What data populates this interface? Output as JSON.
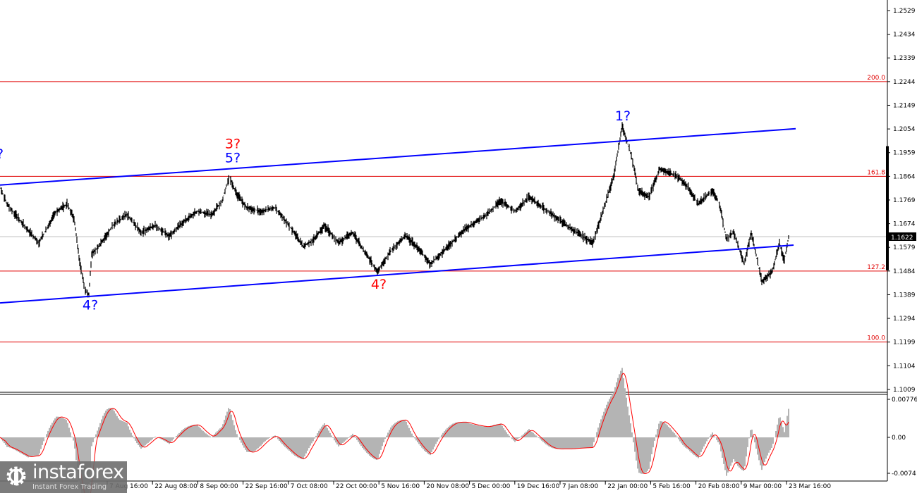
{
  "chart_data": {
    "type": "line",
    "title": "",
    "price_axis": {
      "ticks": [
        "1.2529",
        "1.2434",
        "1.2339",
        "1.2244",
        "1.2149",
        "1.2054",
        "1.1959",
        "1.1864",
        "1.1769",
        "1.1674",
        "1.1579",
        "1.1484",
        "1.1389",
        "1.1294",
        "1.1199",
        "1.1104",
        "1.1009"
      ],
      "range": [
        1.1,
        1.257
      ]
    },
    "current_price": "1.1622",
    "time_axis": {
      "ticks": [
        "7 Aug 16:00",
        "22 Aug 08:00",
        "8 Sep 00:00",
        "22 Sep 16:00",
        "7 Oct 08:00",
        "22 Oct 00:00",
        "5 Nov 16:00",
        "20 Nov 08:00",
        "5 Dec 00:00",
        "19 Dec 16:00",
        "7 Jan 08:00",
        "22 Jan 00:00",
        "5 Feb 16:00",
        "20 Feb 08:00",
        "9 Mar 00:00",
        "23 Mar 16:00"
      ]
    },
    "price_series": [
      [
        0,
        1.1823
      ],
      [
        10,
        1.1752
      ],
      [
        30,
        1.1681
      ],
      [
        55,
        1.1597
      ],
      [
        80,
        1.1724
      ],
      [
        95,
        1.1752
      ],
      [
        105,
        1.1695
      ],
      [
        112,
        1.154
      ],
      [
        120,
        1.1413
      ],
      [
        126,
        1.139
      ],
      [
        130,
        1.1554
      ],
      [
        140,
        1.1582
      ],
      [
        160,
        1.1667
      ],
      [
        180,
        1.171
      ],
      [
        200,
        1.1639
      ],
      [
        220,
        1.1667
      ],
      [
        240,
        1.1625
      ],
      [
        260,
        1.1681
      ],
      [
        280,
        1.1724
      ],
      [
        300,
        1.171
      ],
      [
        315,
        1.1766
      ],
      [
        325,
        1.1865
      ],
      [
        335,
        1.1794
      ],
      [
        350,
        1.1738
      ],
      [
        370,
        1.1724
      ],
      [
        390,
        1.1738
      ],
      [
        410,
        1.1667
      ],
      [
        430,
        1.1582
      ],
      [
        445,
        1.1611
      ],
      [
        460,
        1.1667
      ],
      [
        480,
        1.1597
      ],
      [
        500,
        1.1639
      ],
      [
        515,
        1.1568
      ],
      [
        535,
        1.1484
      ],
      [
        555,
        1.1568
      ],
      [
        575,
        1.1625
      ],
      [
        595,
        1.1568
      ],
      [
        610,
        1.1512
      ],
      [
        630,
        1.1568
      ],
      [
        660,
        1.1653
      ],
      [
        690,
        1.171
      ],
      [
        710,
        1.1766
      ],
      [
        730,
        1.1724
      ],
      [
        750,
        1.178
      ],
      [
        770,
        1.1738
      ],
      [
        790,
        1.1695
      ],
      [
        810,
        1.1653
      ],
      [
        840,
        1.1597
      ],
      [
        855,
        1.1724
      ],
      [
        870,
        1.1865
      ],
      [
        882,
        1.2063
      ],
      [
        895,
        1.195
      ],
      [
        905,
        1.1808
      ],
      [
        920,
        1.178
      ],
      [
        935,
        1.1893
      ],
      [
        960,
        1.1865
      ],
      [
        975,
        1.1823
      ],
      [
        990,
        1.1752
      ],
      [
        1010,
        1.1808
      ],
      [
        1020,
        1.1752
      ],
      [
        1030,
        1.1611
      ],
      [
        1040,
        1.1639
      ],
      [
        1055,
        1.1512
      ],
      [
        1065,
        1.1639
      ],
      [
        1080,
        1.1441
      ],
      [
        1095,
        1.1484
      ],
      [
        1105,
        1.1597
      ],
      [
        1112,
        1.1526
      ],
      [
        1118,
        1.1622
      ]
    ],
    "channel_lines": [
      {
        "name": "upper",
        "color": "#0000ff",
        "from": [
          0,
          1.1829
        ],
        "to": [
          1128,
          1.2055
        ]
      },
      {
        "name": "lower",
        "color": "#0000ff",
        "from": [
          0,
          1.1356
        ],
        "to": [
          1125,
          1.1588
        ]
      }
    ],
    "fib_levels": [
      {
        "label": "200.0",
        "price": 1.2244
      },
      {
        "label": "161.8",
        "price": 1.1864
      },
      {
        "label": "127.2",
        "price": 1.1484
      },
      {
        "label": "100.0",
        "price": 1.1199
      }
    ],
    "wave_labels": [
      {
        "text": "?",
        "color": "#0000ff",
        "t": 0,
        "price": 1.1935
      },
      {
        "text": "3?",
        "color": "#ff0000",
        "t": 330,
        "price": 1.1976
      },
      {
        "text": "5?",
        "color": "#0000ff",
        "t": 330,
        "price": 1.192
      },
      {
        "text": "4?",
        "color": "#0000ff",
        "t": 128,
        "price": 1.133
      },
      {
        "text": "4?",
        "color": "#ff0000",
        "t": 537,
        "price": 1.1413
      },
      {
        "text": "1?",
        "color": "#0000ff",
        "t": 883,
        "price": 1.2088
      }
    ],
    "oscillator": {
      "ticks": [
        "0.00776",
        "0.00",
        "-0.0074"
      ],
      "range": [
        -0.008,
        0.0082
      ]
    },
    "colors": {
      "price": "#000000",
      "channel": "#0000ff",
      "fib": "#ff0000",
      "hist": "#b4b4b4",
      "signal": "#ff0000"
    }
  },
  "logo": {
    "name": "instaforex",
    "tagline": "Instant Forex Trading"
  }
}
